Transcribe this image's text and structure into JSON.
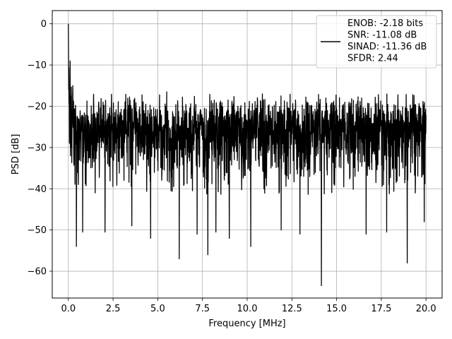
{
  "chart_data": {
    "type": "line",
    "title": "",
    "xlabel": "Frequency [MHz]",
    "ylabel": "PSD [dB]",
    "xlim": [
      -0.9,
      20.9
    ],
    "ylim": [
      -66.5,
      3.2
    ],
    "xticks": [
      0.0,
      2.5,
      5.0,
      7.5,
      10.0,
      12.5,
      15.0,
      17.5,
      20.0
    ],
    "xtick_labels": [
      "0.0",
      "2.5",
      "5.0",
      "7.5",
      "10.0",
      "12.5",
      "15.0",
      "17.5",
      "20.0"
    ],
    "yticks": [
      0,
      -10,
      -20,
      -30,
      -40,
      -50,
      -60
    ],
    "ytick_labels": [
      "0",
      "−10",
      "−20",
      "−30",
      "−40",
      "−50",
      "−60"
    ],
    "grid": true,
    "legend_position": "top-right",
    "series": [
      {
        "name": "ENOB: -2.18 bits\nSNR: -11.08 dB\nSINAD: -11.36 dB\nSFDR: 2.44",
        "color": "#000000",
        "x_range": [
          0,
          20
        ],
        "peak": {
          "x": 0.0,
          "y": 0.0
        },
        "noise_floor_mean": -27,
        "noise_floor_upper_approx": -20,
        "noise_floor_lower_approx": -35,
        "notable_dips": [
          {
            "x": 0.45,
            "y": -54
          },
          {
            "x": 0.8,
            "y": -50.5
          },
          {
            "x": 2.05,
            "y": -50.5
          },
          {
            "x": 3.55,
            "y": -49
          },
          {
            "x": 4.6,
            "y": -52
          },
          {
            "x": 6.2,
            "y": -57
          },
          {
            "x": 7.2,
            "y": -51
          },
          {
            "x": 7.8,
            "y": -56
          },
          {
            "x": 8.25,
            "y": -50.5
          },
          {
            "x": 9.0,
            "y": -52
          },
          {
            "x": 10.2,
            "y": -54
          },
          {
            "x": 11.9,
            "y": -50
          },
          {
            "x": 12.95,
            "y": -51
          },
          {
            "x": 14.15,
            "y": -63.5
          },
          {
            "x": 16.65,
            "y": -51
          },
          {
            "x": 17.8,
            "y": -50.5
          },
          {
            "x": 18.95,
            "y": -58
          },
          {
            "x": 19.9,
            "y": -48
          }
        ],
        "notable_peaks": [
          {
            "x": 0.02,
            "y": 0.0
          },
          {
            "x": 0.1,
            "y": -9
          },
          {
            "x": 0.25,
            "y": -15
          },
          {
            "x": 5.5,
            "y": -16.5
          },
          {
            "x": 10.85,
            "y": -17
          },
          {
            "x": 14.4,
            "y": -18
          },
          {
            "x": 16.4,
            "y": -18
          },
          {
            "x": 19.9,
            "y": -18
          }
        ]
      }
    ]
  }
}
